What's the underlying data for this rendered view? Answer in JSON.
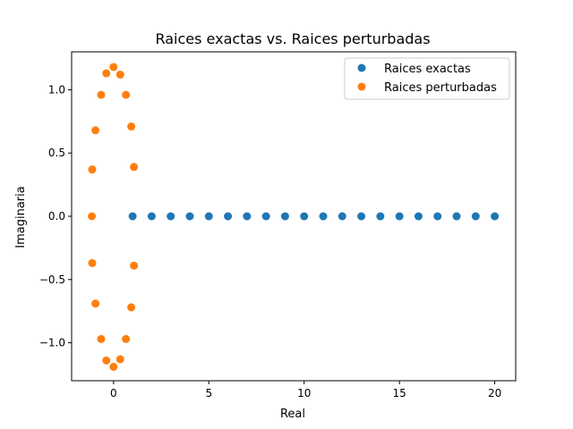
{
  "chart_data": {
    "type": "scatter",
    "title": "Raices exactas vs. Raices perturbadas",
    "xlabel": "Real",
    "ylabel": "Imaginaria",
    "xlim": [
      -2.2,
      21.1
    ],
    "ylim": [
      -1.3,
      1.3
    ],
    "xticks": [
      0,
      5,
      10,
      15,
      20
    ],
    "xtick_labels": [
      "0",
      "5",
      "10",
      "15",
      "20"
    ],
    "yticks": [
      -1.0,
      -0.5,
      0.0,
      0.5,
      1.0
    ],
    "ytick_labels": [
      "−1.0",
      "−0.5",
      "0.0",
      "0.5",
      "1.0"
    ],
    "grid": false,
    "legend_position": "top-right",
    "series": [
      {
        "name": "Raices exactas",
        "color": "#1f77b4",
        "x": [
          1,
          2,
          3,
          4,
          5,
          6,
          7,
          8,
          9,
          10,
          11,
          12,
          13,
          14,
          15,
          16,
          17,
          18,
          19,
          20
        ],
        "y": [
          0,
          0,
          0,
          0,
          0,
          0,
          0,
          0,
          0,
          0,
          0,
          0,
          0,
          0,
          0,
          0,
          0,
          0,
          0,
          0
        ]
      },
      {
        "name": "Raices perturbadas",
        "color": "#ff7f0e",
        "x": [
          -1.14,
          -1.12,
          -1.12,
          -0.95,
          -0.95,
          -0.65,
          -0.65,
          -0.38,
          -0.38,
          0.0,
          0.0,
          0.35,
          0.35,
          0.65,
          0.65,
          0.93,
          0.93,
          1.07,
          1.07
        ],
        "y": [
          0.0,
          0.37,
          -0.37,
          0.68,
          -0.69,
          0.96,
          -0.97,
          1.13,
          -1.14,
          1.18,
          -1.19,
          1.12,
          -1.13,
          0.96,
          -0.97,
          0.71,
          -0.72,
          0.39,
          -0.39
        ]
      }
    ]
  }
}
